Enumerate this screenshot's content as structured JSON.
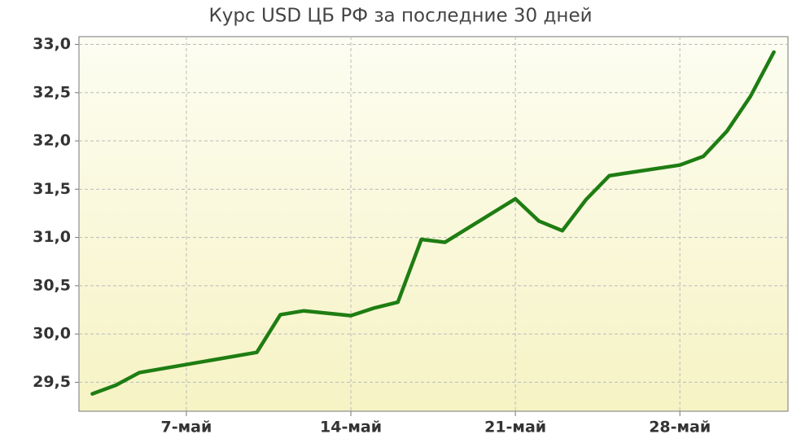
{
  "chart_data": {
    "type": "line",
    "title": "Курс USD ЦБ РФ за последние 30 дней",
    "x": [
      3,
      4,
      5,
      10,
      11,
      12,
      14,
      15,
      16,
      17,
      18,
      21,
      22,
      23,
      24,
      25,
      28,
      29,
      30,
      31,
      32
    ],
    "series": [
      {
        "color": "#1e7d12",
        "values": [
          29.38,
          29.47,
          29.6,
          29.81,
          30.2,
          30.24,
          30.19,
          30.27,
          30.33,
          30.98,
          30.95,
          31.4,
          31.17,
          31.07,
          31.39,
          31.64,
          31.75,
          31.84,
          32.1,
          32.46,
          32.92
        ]
      }
    ],
    "xlim": [
      2.43,
      32.6
    ],
    "xticks": [
      {
        "value": 7,
        "label": "7-май"
      },
      {
        "value": 14,
        "label": "14-май"
      },
      {
        "value": 21,
        "label": "21-май"
      },
      {
        "value": 28,
        "label": "28-май"
      }
    ],
    "ylim": [
      29.2,
      33.08
    ],
    "yticks": [
      {
        "value": 29.5,
        "label": "29,5"
      },
      {
        "value": 30,
        "label": "30,0"
      },
      {
        "value": 30.5,
        "label": "30,5"
      },
      {
        "value": 31,
        "label": "31,0"
      },
      {
        "value": 31.5,
        "label": "31,5"
      },
      {
        "value": 32,
        "label": "32,0"
      },
      {
        "value": 32.5,
        "label": "32,5"
      },
      {
        "value": 33,
        "label": "33,0"
      }
    ],
    "grid": true
  }
}
